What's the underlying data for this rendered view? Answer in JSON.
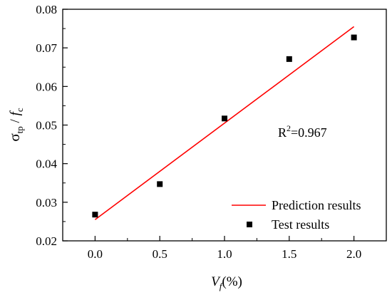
{
  "chart_data": {
    "type": "scatter",
    "x_ticks": [
      "0.0",
      "0.5",
      "1.0",
      "1.5",
      "2.0"
    ],
    "y_ticks": [
      "0.02",
      "0.03",
      "0.04",
      "0.05",
      "0.06",
      "0.07",
      "0.08"
    ],
    "xlim": [
      -0.25,
      2.25
    ],
    "ylim": [
      0.02,
      0.08
    ],
    "grid": false,
    "legend_position": "bottom-right",
    "xlabel": {
      "var": "V",
      "sub": "f",
      "rest": "(%)"
    },
    "ylabel": {
      "sigma": "σ",
      "sigma_sub": "tp",
      "slash": " / ",
      "f": "f",
      "f_sub": "c"
    },
    "series": [
      {
        "name": "Prediction results",
        "kind": "line",
        "color": "#ff0000",
        "x": [
          0.0,
          2.0
        ],
        "y": [
          0.0255,
          0.0755
        ]
      },
      {
        "name": "Test results",
        "kind": "scatter",
        "color": "#000000",
        "marker": "square",
        "x": [
          0.0,
          0.5,
          1.0,
          1.5,
          2.0
        ],
        "y": [
          0.0268,
          0.0347,
          0.0517,
          0.0671,
          0.0727
        ]
      }
    ],
    "annotations": {
      "r2_label": "R",
      "r2_sup": "2",
      "r2_value": "=0.967"
    }
  }
}
